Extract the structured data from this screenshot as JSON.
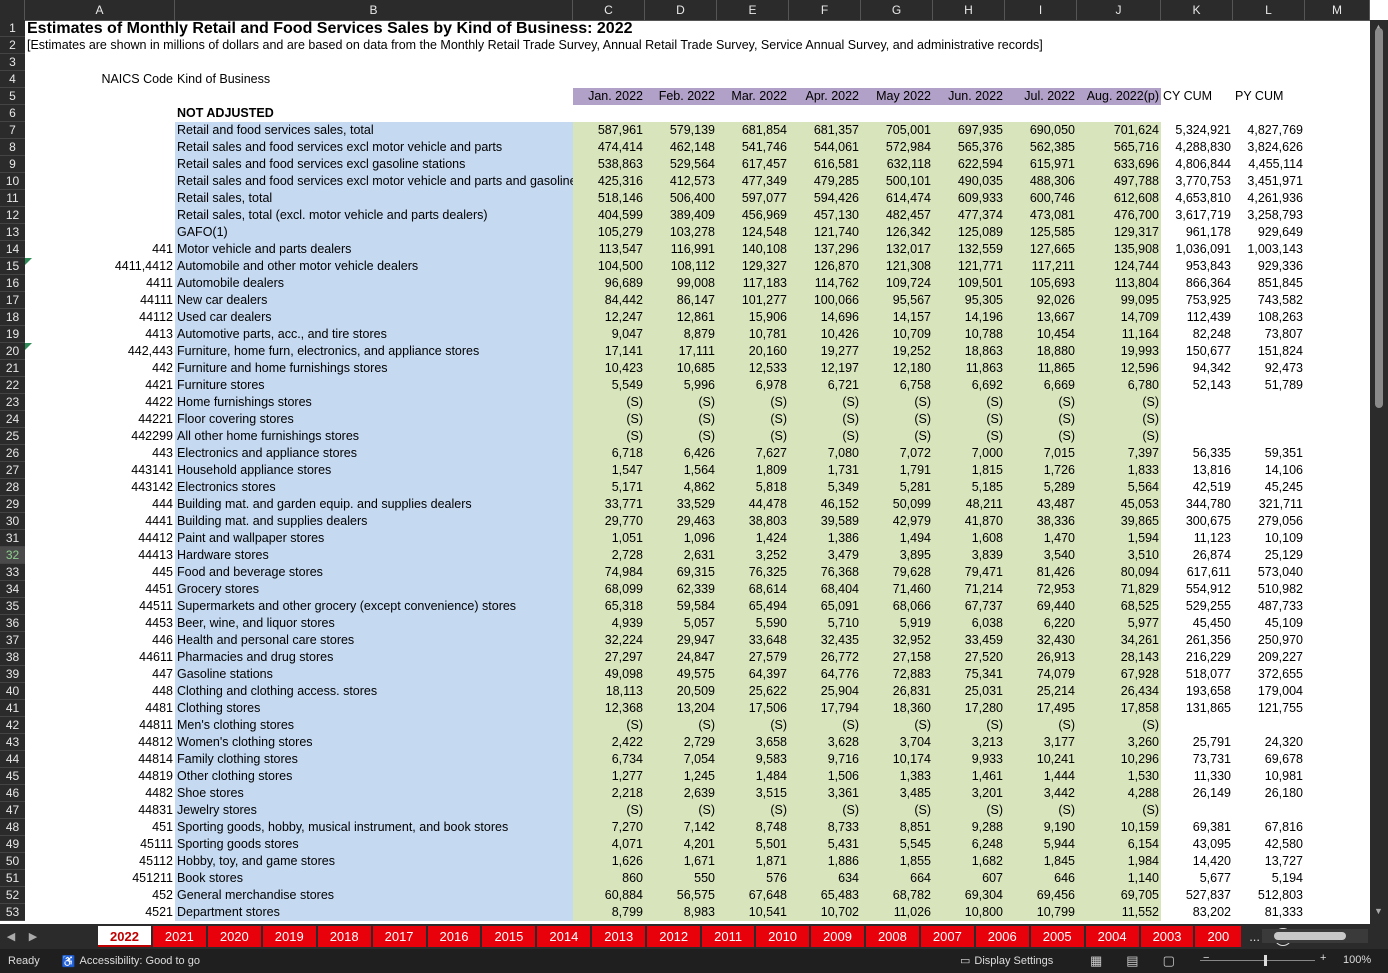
{
  "columns": [
    "A",
    "B",
    "C",
    "D",
    "E",
    "F",
    "G",
    "H",
    "I",
    "J",
    "K",
    "L",
    "M"
  ],
  "title": "Estimates of Monthly Retail and Food Services Sales by Kind of Business: 2022",
  "subtitle": "[Estimates are shown in millions of dollars and are based on data from the Monthly Retail Trade Survey, Annual Retail Trade Survey, Service Annual Survey, and administrative records]",
  "header_labels": {
    "naics": "NAICS  Code",
    "kind": "Kind of Business"
  },
  "month_headers": [
    "Jan. 2022",
    "Feb. 2022",
    "Mar. 2022",
    "Apr. 2022",
    "May 2022",
    "Jun. 2022",
    "Jul. 2022",
    "Aug. 2022(p)"
  ],
  "cum_headers": [
    "CY CUM",
    "PY CUM"
  ],
  "section_label": "NOT ADJUSTED",
  "selected_row": 32,
  "rows": [
    {
      "r": 7,
      "code": "",
      "name": "Retail and food services sales, total",
      "v": [
        "587,961",
        "579,139",
        "681,854",
        "681,357",
        "705,001",
        "697,935",
        "690,050",
        "701,624"
      ],
      "cy": "5,324,921",
      "py": "4,827,769"
    },
    {
      "r": 8,
      "code": "",
      "name": "Retail sales and food services excl motor vehicle and parts",
      "v": [
        "474,414",
        "462,148",
        "541,746",
        "544,061",
        "572,984",
        "565,376",
        "562,385",
        "565,716"
      ],
      "cy": "4,288,830",
      "py": "3,824,626"
    },
    {
      "r": 9,
      "code": "",
      "name": "Retail sales and food services excl gasoline stations",
      "v": [
        "538,863",
        "529,564",
        "617,457",
        "616,581",
        "632,118",
        "622,594",
        "615,971",
        "633,696"
      ],
      "cy": "4,806,844",
      "py": "4,455,114"
    },
    {
      "r": 10,
      "code": "",
      "name": "Retail sales and food services excl motor vehicle and parts and gasoline stations",
      "v": [
        "425,316",
        "412,573",
        "477,349",
        "479,285",
        "500,101",
        "490,035",
        "488,306",
        "497,788"
      ],
      "cy": "3,770,753",
      "py": "3,451,971"
    },
    {
      "r": 11,
      "code": "",
      "name": "Retail sales, total",
      "v": [
        "518,146",
        "506,400",
        "597,077",
        "594,426",
        "614,474",
        "609,933",
        "600,746",
        "612,608"
      ],
      "cy": "4,653,810",
      "py": "4,261,936"
    },
    {
      "r": 12,
      "code": "",
      "name": "Retail sales, total (excl. motor vehicle and parts dealers)",
      "v": [
        "404,599",
        "389,409",
        "456,969",
        "457,130",
        "482,457",
        "477,374",
        "473,081",
        "476,700"
      ],
      "cy": "3,617,719",
      "py": "3,258,793"
    },
    {
      "r": 13,
      "code": "",
      "name": "GAFO(1)",
      "v": [
        "105,279",
        "103,278",
        "124,548",
        "121,740",
        "126,342",
        "125,089",
        "125,585",
        "129,317"
      ],
      "cy": "961,178",
      "py": "929,649"
    },
    {
      "r": 14,
      "code": "441",
      "name": "Motor vehicle and parts dealers",
      "v": [
        "113,547",
        "116,991",
        "140,108",
        "137,296",
        "132,017",
        "132,559",
        "127,665",
        "135,908"
      ],
      "cy": "1,036,091",
      "py": "1,003,143"
    },
    {
      "r": 15,
      "code": "4411,4412",
      "name": "Automobile and other motor vehicle dealers",
      "v": [
        "104,500",
        "108,112",
        "129,327",
        "126,870",
        "121,308",
        "121,771",
        "117,211",
        "124,744"
      ],
      "cy": "953,843",
      "py": "929,336",
      "tri": true
    },
    {
      "r": 16,
      "code": "4411",
      "name": "Automobile dealers",
      "v": [
        "96,689",
        "99,008",
        "117,183",
        "114,762",
        "109,724",
        "109,501",
        "105,693",
        "113,804"
      ],
      "cy": "866,364",
      "py": "851,845"
    },
    {
      "r": 17,
      "code": "44111",
      "name": "New car dealers",
      "v": [
        "84,442",
        "86,147",
        "101,277",
        "100,066",
        "95,567",
        "95,305",
        "92,026",
        "99,095"
      ],
      "cy": "753,925",
      "py": "743,582"
    },
    {
      "r": 18,
      "code": "44112",
      "name": "Used car dealers",
      "v": [
        "12,247",
        "12,861",
        "15,906",
        "14,696",
        "14,157",
        "14,196",
        "13,667",
        "14,709"
      ],
      "cy": "112,439",
      "py": "108,263"
    },
    {
      "r": 19,
      "code": "4413",
      "name": "Automotive parts, acc., and tire stores",
      "v": [
        "9,047",
        "8,879",
        "10,781",
        "10,426",
        "10,709",
        "10,788",
        "10,454",
        "11,164"
      ],
      "cy": "82,248",
      "py": "73,807"
    },
    {
      "r": 20,
      "code": "442,443",
      "name": "Furniture, home furn, electronics, and appliance stores",
      "v": [
        "17,141",
        "17,111",
        "20,160",
        "19,277",
        "19,252",
        "18,863",
        "18,880",
        "19,993"
      ],
      "cy": "150,677",
      "py": "151,824",
      "tri": true
    },
    {
      "r": 21,
      "code": "442",
      "name": "Furniture and home furnishings stores",
      "v": [
        "10,423",
        "10,685",
        "12,533",
        "12,197",
        "12,180",
        "11,863",
        "11,865",
        "12,596"
      ],
      "cy": "94,342",
      "py": "92,473"
    },
    {
      "r": 22,
      "code": "4421",
      "name": "Furniture stores",
      "v": [
        "5,549",
        "5,996",
        "6,978",
        "6,721",
        "6,758",
        "6,692",
        "6,669",
        "6,780"
      ],
      "cy": "52,143",
      "py": "51,789"
    },
    {
      "r": 23,
      "code": "4422",
      "name": "Home furnishings stores",
      "v": [
        "(S)",
        "(S)",
        "(S)",
        "(S)",
        "(S)",
        "(S)",
        "(S)",
        "(S)"
      ],
      "cy": "",
      "py": ""
    },
    {
      "r": 24,
      "code": "44221",
      "name": "Floor covering stores",
      "v": [
        "(S)",
        "(S)",
        "(S)",
        "(S)",
        "(S)",
        "(S)",
        "(S)",
        "(S)"
      ],
      "cy": "",
      "py": ""
    },
    {
      "r": 25,
      "code": "442299",
      "name": "All other home furnishings stores",
      "v": [
        "(S)",
        "(S)",
        "(S)",
        "(S)",
        "(S)",
        "(S)",
        "(S)",
        "(S)"
      ],
      "cy": "",
      "py": ""
    },
    {
      "r": 26,
      "code": "443",
      "name": "Electronics and appliance stores",
      "v": [
        "6,718",
        "6,426",
        "7,627",
        "7,080",
        "7,072",
        "7,000",
        "7,015",
        "7,397"
      ],
      "cy": "56,335",
      "py": "59,351"
    },
    {
      "r": 27,
      "code": "443141",
      "name": "Household appliance stores",
      "v": [
        "1,547",
        "1,564",
        "1,809",
        "1,731",
        "1,791",
        "1,815",
        "1,726",
        "1,833"
      ],
      "cy": "13,816",
      "py": "14,106"
    },
    {
      "r": 28,
      "code": "443142",
      "name": "Electronics stores",
      "v": [
        "5,171",
        "4,862",
        "5,818",
        "5,349",
        "5,281",
        "5,185",
        "5,289",
        "5,564"
      ],
      "cy": "42,519",
      "py": "45,245"
    },
    {
      "r": 29,
      "code": "444",
      "name": "Building mat. and garden equip. and supplies dealers",
      "v": [
        "33,771",
        "33,529",
        "44,478",
        "46,152",
        "50,099",
        "48,211",
        "43,487",
        "45,053"
      ],
      "cy": "344,780",
      "py": "321,711"
    },
    {
      "r": 30,
      "code": "4441",
      "name": "Building mat. and supplies dealers",
      "v": [
        "29,770",
        "29,463",
        "38,803",
        "39,589",
        "42,979",
        "41,870",
        "38,336",
        "39,865"
      ],
      "cy": "300,675",
      "py": "279,056"
    },
    {
      "r": 31,
      "code": "44412",
      "name": "Paint and wallpaper stores",
      "v": [
        "1,051",
        "1,096",
        "1,424",
        "1,386",
        "1,494",
        "1,608",
        "1,470",
        "1,594"
      ],
      "cy": "11,123",
      "py": "10,109"
    },
    {
      "r": 32,
      "code": "44413",
      "name": "Hardware stores",
      "v": [
        "2,728",
        "2,631",
        "3,252",
        "3,479",
        "3,895",
        "3,839",
        "3,540",
        "3,510"
      ],
      "cy": "26,874",
      "py": "25,129"
    },
    {
      "r": 33,
      "code": "445",
      "name": "Food and beverage stores",
      "v": [
        "74,984",
        "69,315",
        "76,325",
        "76,368",
        "79,628",
        "79,471",
        "81,426",
        "80,094"
      ],
      "cy": "617,611",
      "py": "573,040"
    },
    {
      "r": 34,
      "code": "4451",
      "name": "Grocery stores",
      "v": [
        "68,099",
        "62,339",
        "68,614",
        "68,404",
        "71,460",
        "71,214",
        "72,953",
        "71,829"
      ],
      "cy": "554,912",
      "py": "510,982"
    },
    {
      "r": 35,
      "code": "44511",
      "name": "Supermarkets and other grocery (except convenience) stores",
      "v": [
        "65,318",
        "59,584",
        "65,494",
        "65,091",
        "68,066",
        "67,737",
        "69,440",
        "68,525"
      ],
      "cy": "529,255",
      "py": "487,733"
    },
    {
      "r": 36,
      "code": "4453",
      "name": "Beer, wine, and liquor stores",
      "v": [
        "4,939",
        "5,057",
        "5,590",
        "5,710",
        "5,919",
        "6,038",
        "6,220",
        "5,977"
      ],
      "cy": "45,450",
      "py": "45,109"
    },
    {
      "r": 37,
      "code": "446",
      "name": "Health and personal care stores",
      "v": [
        "32,224",
        "29,947",
        "33,648",
        "32,435",
        "32,952",
        "33,459",
        "32,430",
        "34,261"
      ],
      "cy": "261,356",
      "py": "250,970"
    },
    {
      "r": 38,
      "code": "44611",
      "name": "Pharmacies and drug stores",
      "v": [
        "27,297",
        "24,847",
        "27,579",
        "26,772",
        "27,158",
        "27,520",
        "26,913",
        "28,143"
      ],
      "cy": "216,229",
      "py": "209,227"
    },
    {
      "r": 39,
      "code": "447",
      "name": "Gasoline stations",
      "v": [
        "49,098",
        "49,575",
        "64,397",
        "64,776",
        "72,883",
        "75,341",
        "74,079",
        "67,928"
      ],
      "cy": "518,077",
      "py": "372,655"
    },
    {
      "r": 40,
      "code": "448",
      "name": "Clothing and clothing access. stores",
      "v": [
        "18,113",
        "20,509",
        "25,622",
        "25,904",
        "26,831",
        "25,031",
        "25,214",
        "26,434"
      ],
      "cy": "193,658",
      "py": "179,004"
    },
    {
      "r": 41,
      "code": "4481",
      "name": "Clothing stores",
      "v": [
        "12,368",
        "13,204",
        "17,506",
        "17,794",
        "18,360",
        "17,280",
        "17,495",
        "17,858"
      ],
      "cy": "131,865",
      "py": "121,755"
    },
    {
      "r": 42,
      "code": "44811",
      "name": "Men's clothing stores",
      "v": [
        "(S)",
        "(S)",
        "(S)",
        "(S)",
        "(S)",
        "(S)",
        "(S)",
        "(S)"
      ],
      "cy": "",
      "py": ""
    },
    {
      "r": 43,
      "code": "44812",
      "name": "Women's clothing stores",
      "v": [
        "2,422",
        "2,729",
        "3,658",
        "3,628",
        "3,704",
        "3,213",
        "3,177",
        "3,260"
      ],
      "cy": "25,791",
      "py": "24,320"
    },
    {
      "r": 44,
      "code": "44814",
      "name": "Family clothing stores",
      "v": [
        "6,734",
        "7,054",
        "9,583",
        "9,716",
        "10,174",
        "9,933",
        "10,241",
        "10,296"
      ],
      "cy": "73,731",
      "py": "69,678"
    },
    {
      "r": 45,
      "code": "44819",
      "name": "Other clothing stores",
      "v": [
        "1,277",
        "1,245",
        "1,484",
        "1,506",
        "1,383",
        "1,461",
        "1,444",
        "1,530"
      ],
      "cy": "11,330",
      "py": "10,981"
    },
    {
      "r": 46,
      "code": "4482",
      "name": "Shoe stores",
      "v": [
        "2,218",
        "2,639",
        "3,515",
        "3,361",
        "3,485",
        "3,201",
        "3,442",
        "4,288"
      ],
      "cy": "26,149",
      "py": "26,180"
    },
    {
      "r": 47,
      "code": "44831",
      "name": "Jewelry stores",
      "v": [
        "(S)",
        "(S)",
        "(S)",
        "(S)",
        "(S)",
        "(S)",
        "(S)",
        "(S)"
      ],
      "cy": "",
      "py": ""
    },
    {
      "r": 48,
      "code": "451",
      "name": "Sporting goods, hobby, musical instrument, and book stores",
      "v": [
        "7,270",
        "7,142",
        "8,748",
        "8,733",
        "8,851",
        "9,288",
        "9,190",
        "10,159"
      ],
      "cy": "69,381",
      "py": "67,816"
    },
    {
      "r": 49,
      "code": "45111",
      "name": "Sporting goods stores",
      "v": [
        "4,071",
        "4,201",
        "5,501",
        "5,431",
        "5,545",
        "6,248",
        "5,944",
        "6,154"
      ],
      "cy": "43,095",
      "py": "42,580"
    },
    {
      "r": 50,
      "code": "45112",
      "name": "Hobby, toy, and game stores",
      "v": [
        "1,626",
        "1,671",
        "1,871",
        "1,886",
        "1,855",
        "1,682",
        "1,845",
        "1,984"
      ],
      "cy": "14,420",
      "py": "13,727"
    },
    {
      "r": 51,
      "code": "451211",
      "name": "Book stores",
      "v": [
        "860",
        "550",
        "576",
        "634",
        "664",
        "607",
        "646",
        "1,140"
      ],
      "cy": "5,677",
      "py": "5,194"
    },
    {
      "r": 52,
      "code": "452",
      "name": "General merchandise stores",
      "v": [
        "60,884",
        "56,575",
        "67,648",
        "65,483",
        "68,782",
        "69,304",
        "69,456",
        "69,705"
      ],
      "cy": "527,837",
      "py": "512,803"
    },
    {
      "r": 53,
      "code": "4521",
      "name": "Department stores",
      "v": [
        "8,799",
        "8,983",
        "10,541",
        "10,702",
        "11,026",
        "10,800",
        "10,799",
        "11,552"
      ],
      "cy": "83,202",
      "py": "81,333"
    }
  ],
  "sheet_tabs": [
    "2022",
    "2021",
    "2020",
    "2019",
    "2018",
    "2017",
    "2016",
    "2015",
    "2014",
    "2013",
    "2012",
    "2011",
    "2010",
    "2009",
    "2008",
    "2007",
    "2006",
    "2005",
    "2004",
    "2003",
    "200"
  ],
  "active_tab": "2022",
  "tab_more": "...",
  "status": {
    "ready": "Ready",
    "accessibility": "Accessibility: Good to go",
    "display_settings": "Display Settings",
    "zoom": "100%"
  }
}
